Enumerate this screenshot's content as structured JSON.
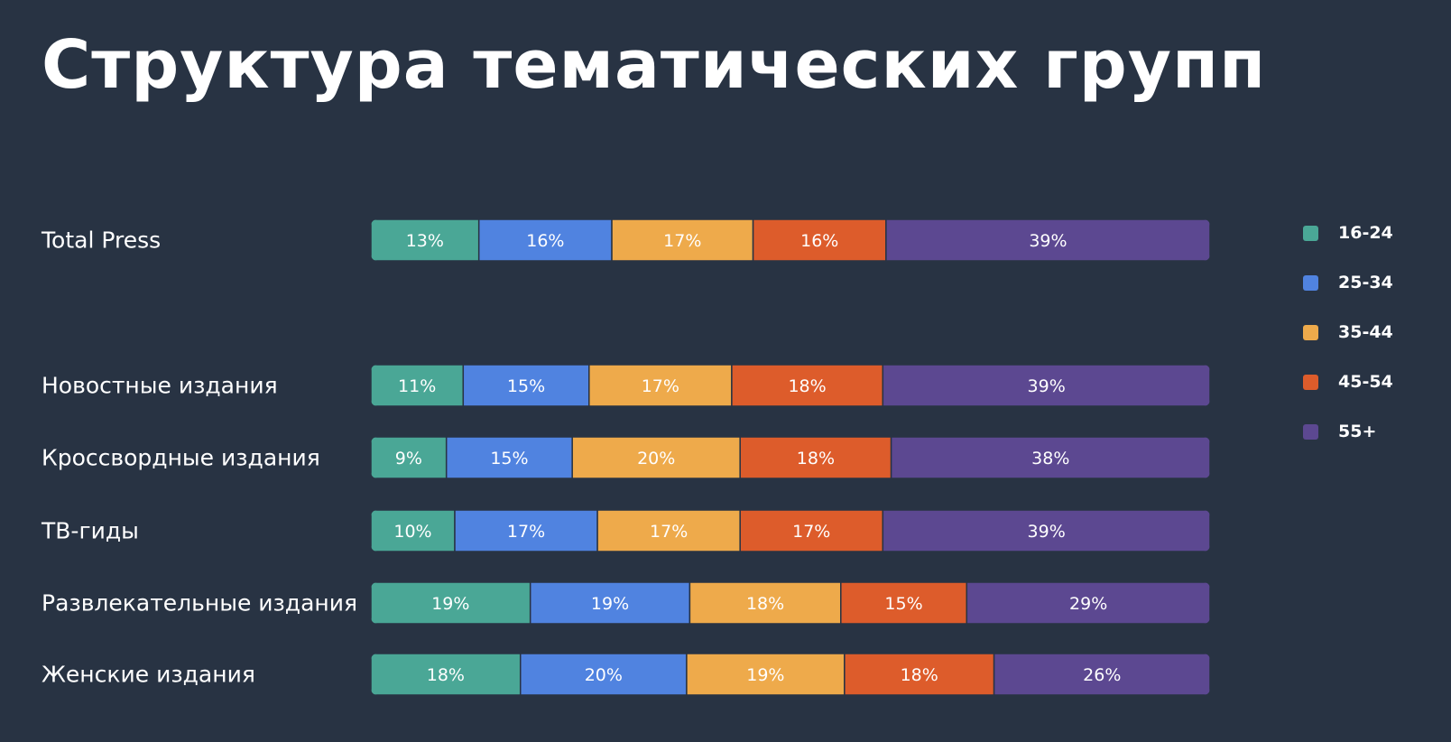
{
  "slide": {
    "title": "Структура тематических групп"
  },
  "chart_data": {
    "type": "bar",
    "orientation": "horizontal",
    "stacked": true,
    "normalized": true,
    "title": "Структура тематических групп",
    "xlabel": "",
    "ylabel": "",
    "xlim": [
      0,
      100
    ],
    "grid": false,
    "legend_position": "right",
    "categories": [
      "Total Press",
      "Новостные издания",
      "Кроссвордные издания",
      "ТВ-гиды",
      "Развлекательные издания",
      "Женские издания"
    ],
    "series": [
      {
        "name": "16-24",
        "color": "#4aa796",
        "values": [
          13,
          11,
          9,
          10,
          19,
          18
        ]
      },
      {
        "name": "25-34",
        "color": "#5083e0",
        "values": [
          16,
          15,
          15,
          17,
          19,
          20
        ]
      },
      {
        "name": "35-44",
        "color": "#eeaa4b",
        "values": [
          17,
          17,
          20,
          17,
          18,
          19
        ]
      },
      {
        "name": "45-54",
        "color": "#dd5c2b",
        "values": [
          16,
          18,
          18,
          17,
          15,
          18
        ]
      },
      {
        "name": "55+",
        "color": "#5c4891",
        "values": [
          39,
          39,
          38,
          39,
          29,
          26
        ]
      }
    ],
    "value_suffix": "%"
  }
}
